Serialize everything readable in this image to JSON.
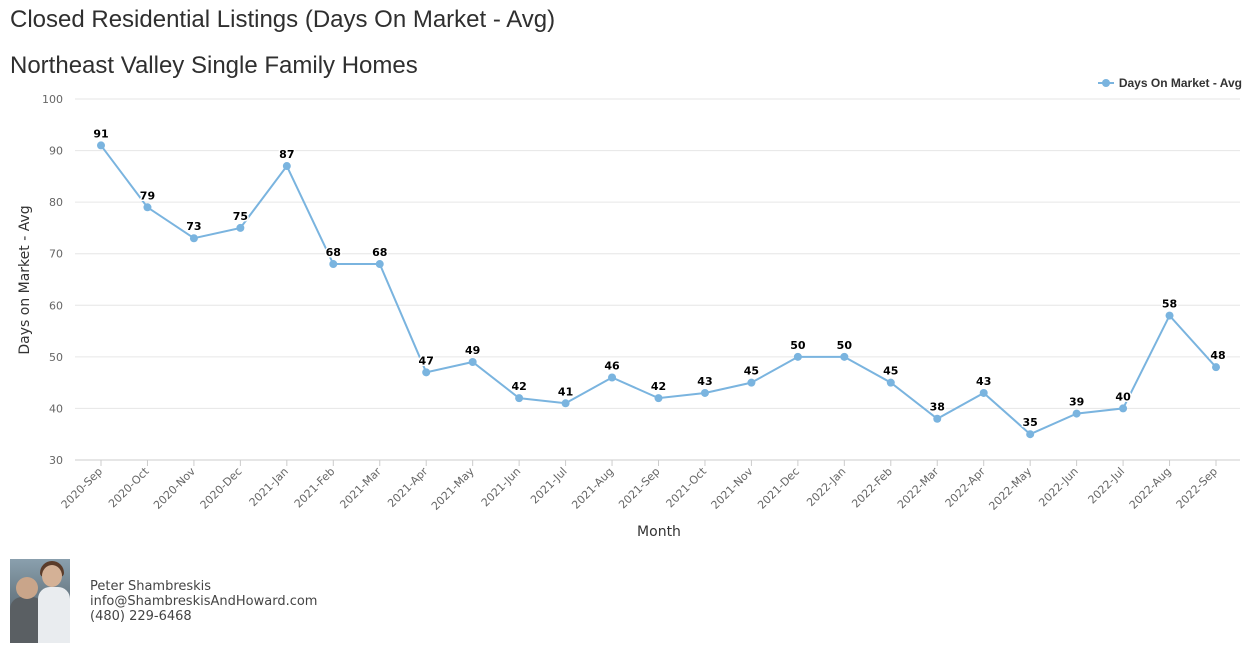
{
  "title": "Closed Residential Listings (Days On Market - Avg)",
  "subtitle": "Northeast Valley Single Family Homes",
  "legend": {
    "label": "Days On Market - Avg",
    "position": "top-right"
  },
  "agent": {
    "name": "Peter Shambreskis",
    "email": "info@ShambreskisAndHoward.com",
    "phone": "(480) 229-6468"
  },
  "colors": {
    "series": "#7ab4df",
    "grid": "#e6e6e6",
    "axis": "#cccccc"
  },
  "chart_data": {
    "type": "line",
    "title": "Closed Residential Listings (Days On Market - Avg)",
    "subtitle": "Northeast Valley Single Family Homes",
    "xlabel": "Month",
    "ylabel": "Days on Market - Avg",
    "ylim": [
      30,
      100
    ],
    "yticks": [
      30,
      40,
      50,
      60,
      70,
      80,
      90,
      100
    ],
    "grid": true,
    "categories": [
      "2020-Sep",
      "2020-Oct",
      "2020-Nov",
      "2020-Dec",
      "2021-Jan",
      "2021-Feb",
      "2021-Mar",
      "2021-Apr",
      "2021-May",
      "2021-Jun",
      "2021-Jul",
      "2021-Aug",
      "2021-Sep",
      "2021-Oct",
      "2021-Nov",
      "2021-Dec",
      "2022-Jan",
      "2022-Feb",
      "2022-Mar",
      "2022-Apr",
      "2022-May",
      "2022-Jun",
      "2022-Jul",
      "2022-Aug",
      "2022-Sep"
    ],
    "series": [
      {
        "name": "Days On Market - Avg",
        "values": [
          91,
          79,
          73,
          75,
          87,
          68,
          68,
          47,
          49,
          42,
          41,
          46,
          42,
          43,
          45,
          50,
          50,
          45,
          38,
          43,
          35,
          39,
          40,
          58,
          48
        ]
      }
    ]
  }
}
